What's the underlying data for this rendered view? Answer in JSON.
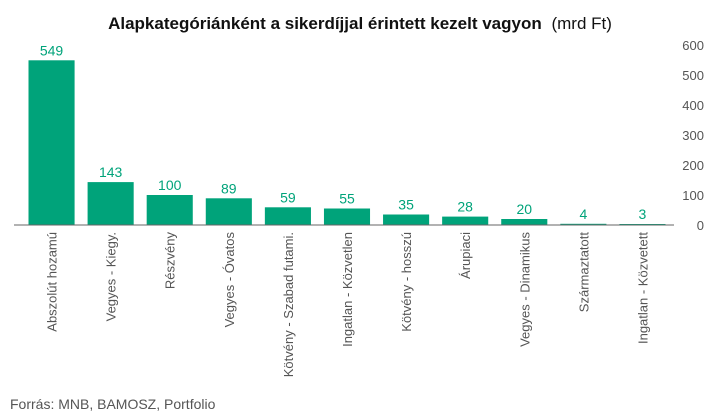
{
  "chart_data": {
    "type": "bar",
    "title": "Alapkategóriánként a sikerdíjjal érintett kezelt vagyon",
    "title_unit": "(mrd Ft)",
    "categories": [
      "Abszolút hozamú",
      "Vegyes - Kiegy.",
      "Részvény",
      "Vegyes - Óvatos",
      "Kötvény - Szabad futami.",
      "Ingatlan - Közvetlen",
      "Kötvény - hosszú",
      "Árupiaci",
      "Vegyes - Dinamikus",
      "Származtatott",
      "Ingatlan - Közvetett"
    ],
    "values": [
      549,
      143,
      100,
      89,
      59,
      55,
      35,
      28,
      20,
      4,
      3
    ],
    "ylim": [
      0,
      600
    ],
    "yticks": [
      0,
      100,
      200,
      300,
      400,
      500,
      600
    ],
    "y_axis_position": "right",
    "grid": false,
    "legend": "none",
    "bar_color": "#00A37A",
    "label_color": "#00A37A",
    "axis_color": "#666666"
  },
  "source": "Forrás: MNB, BAMOSZ, Portfolio"
}
